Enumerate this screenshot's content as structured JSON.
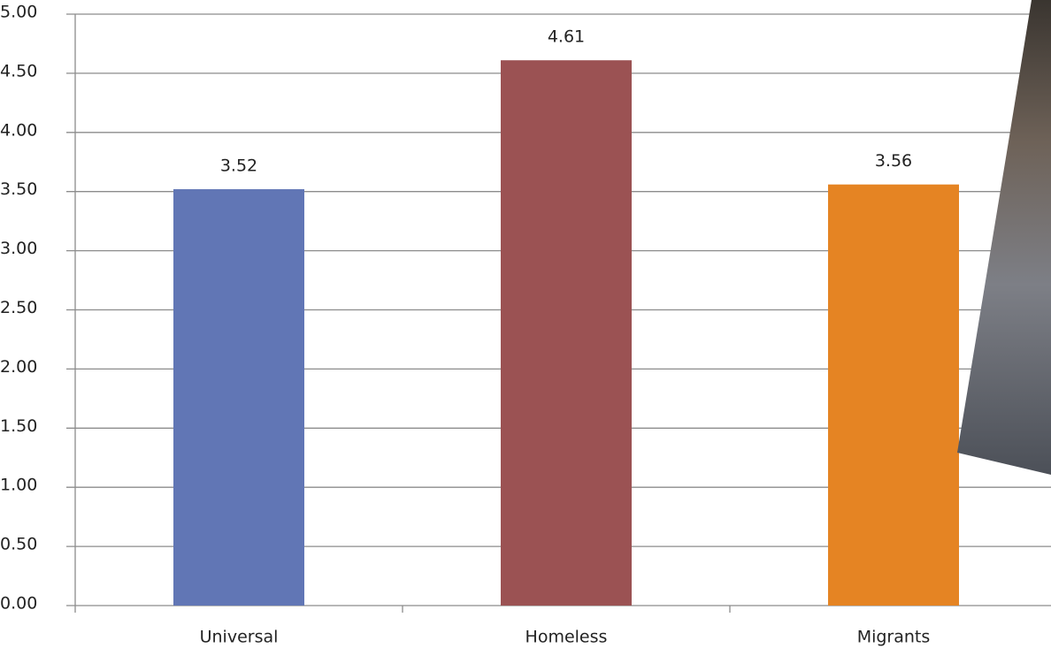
{
  "chart_data": {
    "type": "bar",
    "categories": [
      "Universal",
      "Homeless",
      "Migrants"
    ],
    "series": [
      {
        "colors": [
          "#6176b5",
          "#9b5253",
          "#e58423"
        ],
        "values": [
          3.52,
          4.61,
          3.56
        ]
      }
    ],
    "ylim": [
      0,
      5
    ],
    "yticks": [
      {
        "value": 0,
        "label": "0.00"
      },
      {
        "value": 0.5,
        "label": "0.50"
      },
      {
        "value": 1,
        "label": "1.00"
      },
      {
        "value": 1.5,
        "label": "1.50"
      },
      {
        "value": 2,
        "label": "2.00"
      },
      {
        "value": 2.5,
        "label": "2.50"
      },
      {
        "value": 3,
        "label": "3.00"
      },
      {
        "value": 3.5,
        "label": "3.50"
      },
      {
        "value": 4,
        "label": "4.00"
      },
      {
        "value": 4.5,
        "label": "4.50"
      },
      {
        "value": 5,
        "label": "5.00"
      }
    ],
    "grid": true
  }
}
